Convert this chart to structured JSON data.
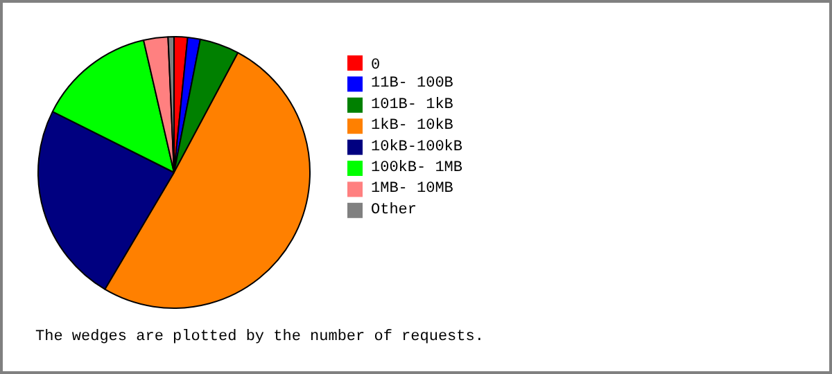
{
  "chart_data": {
    "type": "pie",
    "categories": [
      "0",
      "11B- 100B",
      "101B-  1kB",
      "1kB- 10kB",
      "10kB-100kB",
      "100kB-  1MB",
      "1MB- 10MB",
      "Other"
    ],
    "values": [
      1.6,
      1.5,
      4.7,
      50.7,
      23.9,
      14.0,
      2.9,
      0.7
    ],
    "colors": [
      "#ff0000",
      "#0000ff",
      "#008000",
      "#ff8000",
      "#000080",
      "#00ff00",
      "#ff8080",
      "#808080"
    ],
    "legend": "right",
    "annotations": [
      "The wedges are plotted by the number of requests."
    ]
  }
}
